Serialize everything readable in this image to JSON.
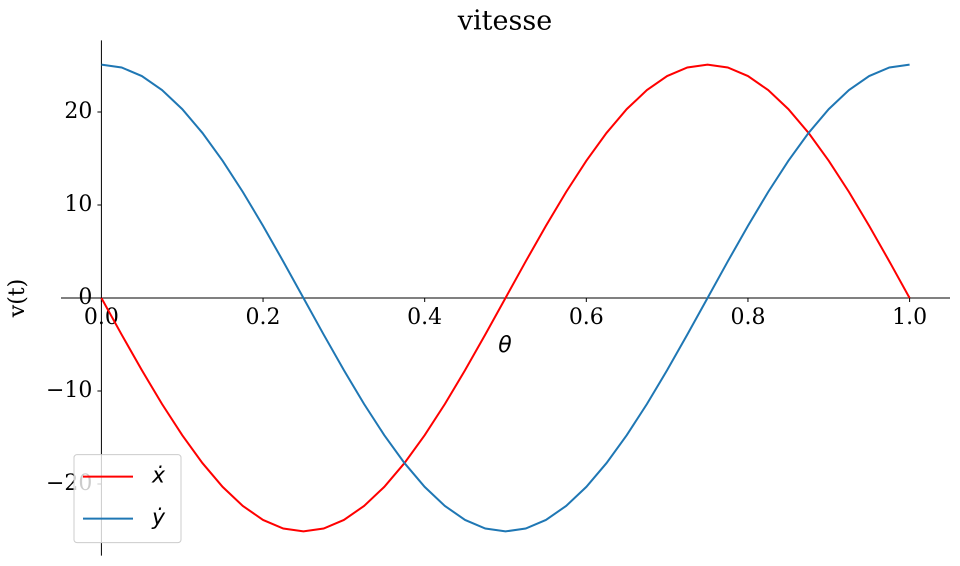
{
  "chart_data": {
    "type": "line",
    "title": "vitesse",
    "xlabel": "θ",
    "ylabel": "v(t)",
    "x": [
      0,
      0.025,
      0.05,
      0.075,
      0.1,
      0.125,
      0.15,
      0.175,
      0.2,
      0.225,
      0.25,
      0.275,
      0.3,
      0.325,
      0.35,
      0.375,
      0.4,
      0.425,
      0.45,
      0.475,
      0.5,
      0.525,
      0.55,
      0.575,
      0.6,
      0.625,
      0.65,
      0.675,
      0.7,
      0.725,
      0.75,
      0.775,
      0.8,
      0.825,
      0.85,
      0.875,
      0.9,
      0.925,
      0.95,
      0.975,
      1
    ],
    "series": [
      {
        "name": "ẋ",
        "color": "#ff0000",
        "values": [
          0,
          -3.93,
          -7.76,
          -11.4,
          -14.75,
          -17.75,
          -20.31,
          -22.36,
          -23.87,
          -24.79,
          -25.1,
          -24.79,
          -23.87,
          -22.36,
          -20.31,
          -17.75,
          -14.75,
          -11.4,
          -7.76,
          -3.93,
          0,
          3.93,
          7.76,
          11.4,
          14.75,
          17.75,
          20.31,
          22.36,
          23.87,
          24.79,
          25.1,
          24.79,
          23.87,
          22.36,
          20.31,
          17.75,
          14.75,
          11.4,
          7.76,
          3.93,
          0
        ]
      },
      {
        "name": "ẏ",
        "color": "#1f77b4",
        "values": [
          25.1,
          24.79,
          23.87,
          22.36,
          20.31,
          17.75,
          14.75,
          11.4,
          7.76,
          3.93,
          0,
          -3.93,
          -7.76,
          -11.4,
          -14.75,
          -17.75,
          -20.31,
          -22.36,
          -23.87,
          -24.79,
          -25.1,
          -24.79,
          -23.87,
          -22.36,
          -20.31,
          -17.75,
          -14.75,
          -11.4,
          -7.76,
          -3.93,
          0,
          3.93,
          7.76,
          11.4,
          14.75,
          17.75,
          20.31,
          22.36,
          23.87,
          24.79,
          25.1
        ]
      }
    ],
    "xlim": [
      -0.05,
      1.05
    ],
    "xticks": [
      {
        "value": 0,
        "label": "0.0"
      },
      0.2,
      0.4,
      0.6,
      0.8,
      {
        "value": 1,
        "label": "1.0"
      }
    ],
    "ylim": [
      -27.7,
      27.7
    ],
    "yticks": [
      {
        "value": -20,
        "label": "−20"
      },
      {
        "value": -10,
        "label": "−10"
      },
      0,
      10,
      20
    ],
    "legend": "lower left"
  }
}
